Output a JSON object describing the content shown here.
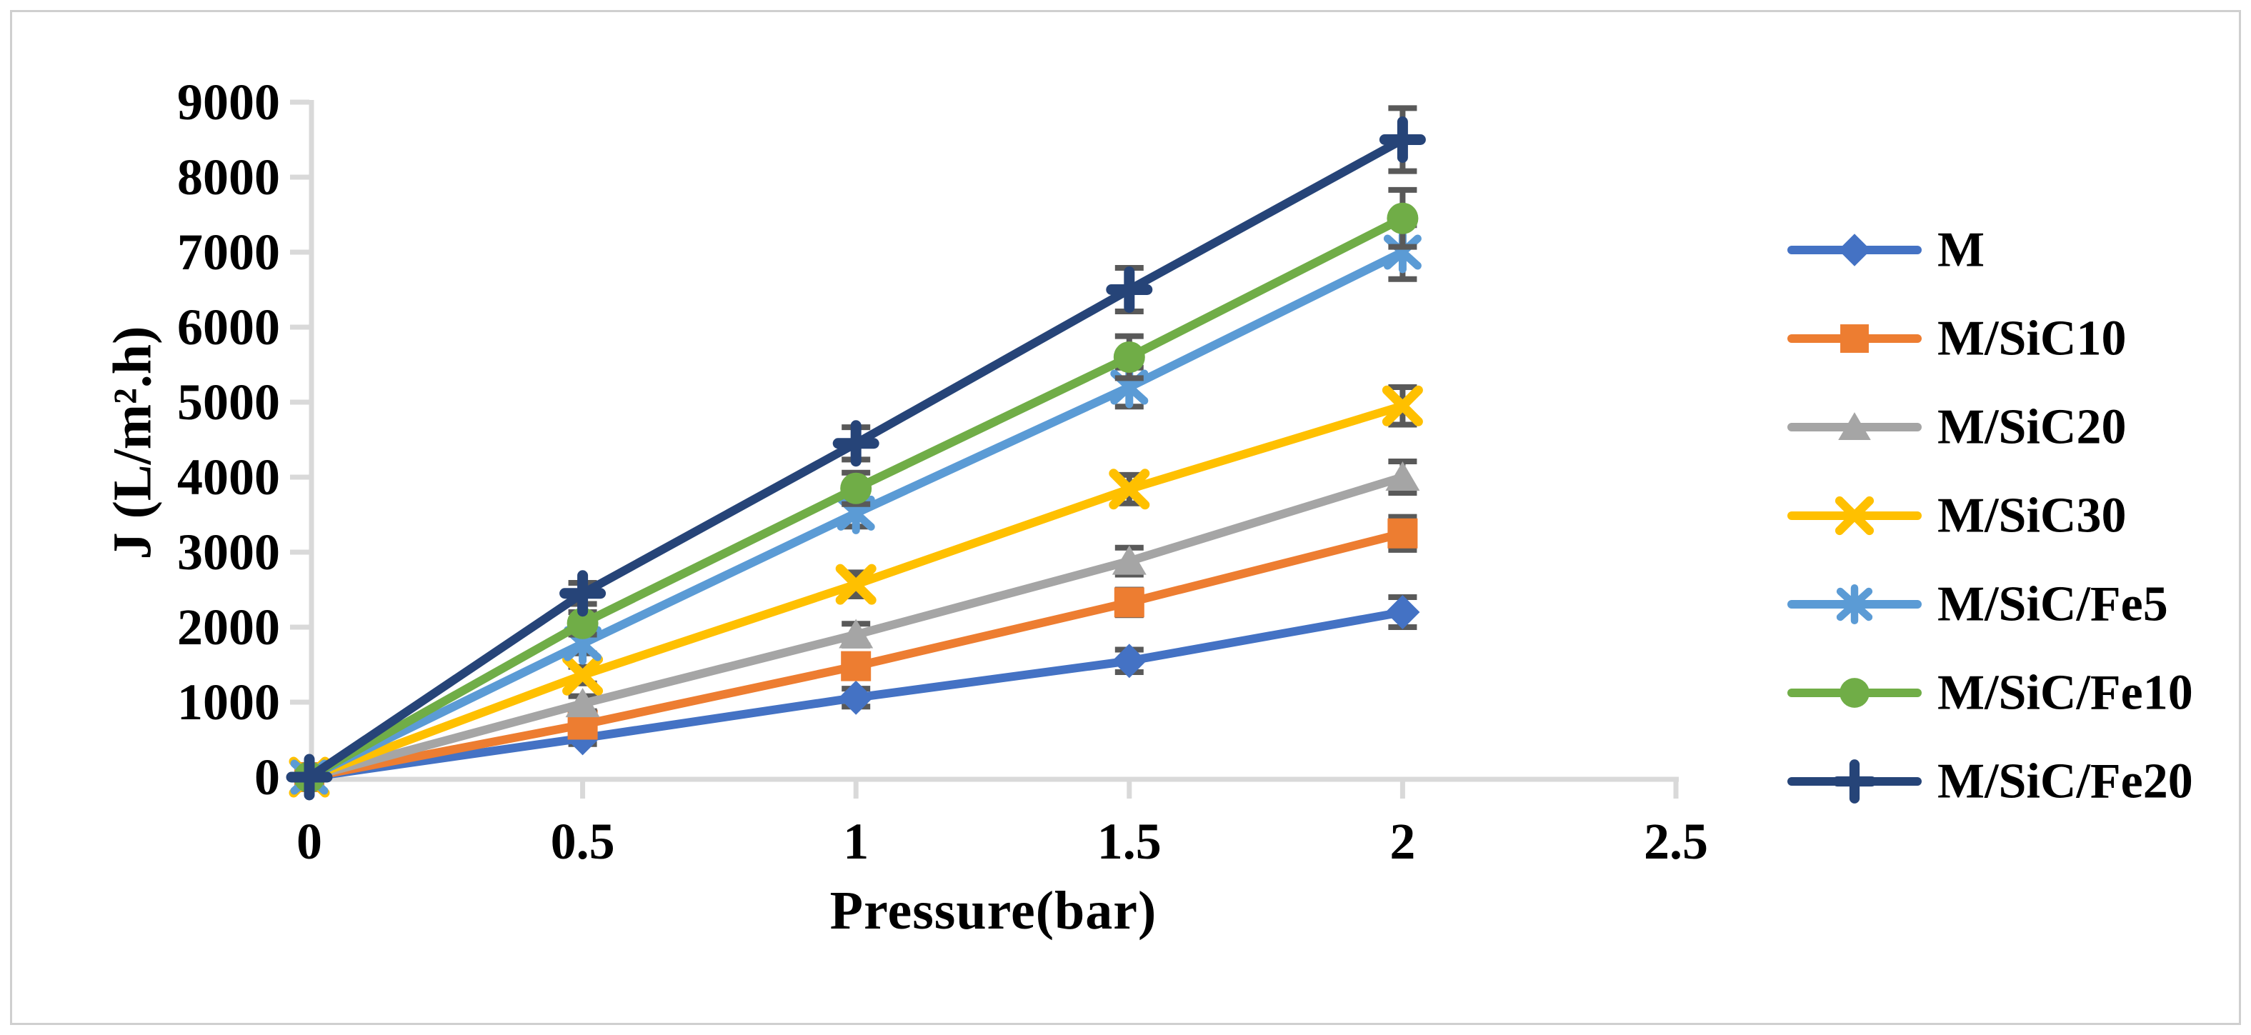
{
  "figure": {
    "xlabel": "Pressure(bar)",
    "ylabel": "J (L/m².h)"
  },
  "chart_data": {
    "type": "line",
    "title": "",
    "xlabel": "Pressure(bar)",
    "ylabel": "J (L/m².h)",
    "x": [
      0,
      0.5,
      1,
      1.5,
      2
    ],
    "xlim": [
      0,
      2.5
    ],
    "ylim": [
      0,
      9000
    ],
    "x_tick_labels": [
      "0",
      "0.5",
      "1",
      "1.5",
      "2",
      "2.5"
    ],
    "x_tick_values": [
      0,
      0.5,
      1,
      1.5,
      2,
      2.5
    ],
    "y_tick_labels": [
      "0",
      "1000",
      "2000",
      "3000",
      "4000",
      "5000",
      "6000",
      "7000",
      "8000",
      "9000"
    ],
    "y_tick_values": [
      0,
      1000,
      2000,
      3000,
      4000,
      5000,
      6000,
      7000,
      8000,
      9000
    ],
    "grid": false,
    "legend_position": "right",
    "axis_color": "#d9d9d9",
    "text_color": "#000000",
    "error_bar_color": "#595959",
    "series": [
      {
        "name": "M",
        "color": "#4472C4",
        "marker": "diamond",
        "values": [
          0,
          520,
          1060,
          1550,
          2200
        ],
        "errors": [
          0,
          80,
          120,
          150,
          200
        ]
      },
      {
        "name": "M/SiC10",
        "color": "#ED7D31",
        "marker": "square",
        "values": [
          0,
          700,
          1480,
          2330,
          3250
        ],
        "errors": [
          0,
          90,
          130,
          170,
          220
        ]
      },
      {
        "name": "M/SiC20",
        "color": "#A5A5A5",
        "marker": "triangle",
        "values": [
          0,
          980,
          1900,
          2880,
          4000
        ],
        "errors": [
          0,
          100,
          145,
          180,
          210
        ]
      },
      {
        "name": "M/SiC30",
        "color": "#FFC000",
        "marker": "x",
        "values": [
          0,
          1360,
          2570,
          3840,
          4950
        ],
        "errors": [
          0,
          110,
          160,
          190,
          250
        ]
      },
      {
        "name": "M/SiC/Fe5",
        "color": "#5B9BD5",
        "marker": "asterisk",
        "values": [
          0,
          1780,
          3520,
          5200,
          7000
        ],
        "errors": [
          0,
          130,
          180,
          260,
          360
        ]
      },
      {
        "name": "M/SiC/Fe10",
        "color": "#70AD47",
        "marker": "circle",
        "values": [
          0,
          2050,
          3850,
          5600,
          7450
        ],
        "errors": [
          0,
          150,
          210,
          280,
          380
        ]
      },
      {
        "name": "M/SiC/Fe20",
        "color": "#264478",
        "marker": "plus",
        "values": [
          0,
          2450,
          4450,
          6500,
          8500
        ],
        "errors": [
          0,
          140,
          215,
          290,
          420
        ]
      }
    ]
  }
}
